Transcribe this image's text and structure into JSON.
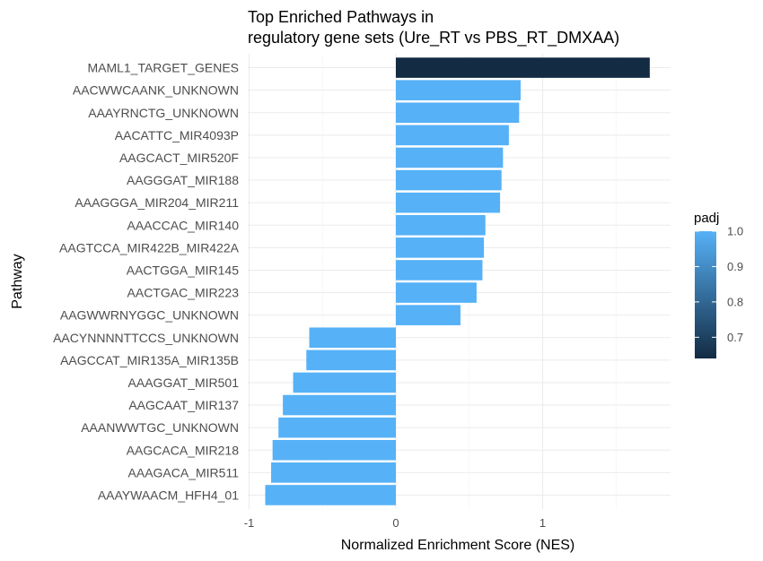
{
  "chart_data": {
    "type": "bar",
    "orientation": "horizontal",
    "title": [
      "Top Enriched Pathways in",
      "regulatory gene sets (Ure_RT vs PBS_RT_DMXAA)"
    ],
    "xlabel": "Normalized Enrichment Score (NES)",
    "ylabel": "Pathway",
    "xlim": [
      -1.0,
      1.85
    ],
    "xticks": [
      -1,
      0,
      1
    ],
    "xtick_labels": [
      "-1",
      "0",
      "1"
    ],
    "grid": true,
    "categories": [
      "MAML1_TARGET_GENES",
      "AACWWCAANK_UNKNOWN",
      "AAAYRNCTG_UNKNOWN",
      "AACATTC_MIR4093P",
      "AAGCACT_MIR520F",
      "AAGGGAT_MIR188",
      "AAAGGGA_MIR204_MIR211",
      "AAACCAC_MIR140",
      "AAGTCCA_MIR422B_MIR422A",
      "AACTGGA_MIR145",
      "AACTGAC_MIR223",
      "AAGWWRNYGGC_UNKNOWN",
      "AACYNNNNTTCCS_UNKNOWN",
      "AAGCCAT_MIR135A_MIR135B",
      "AAAGGAT_MIR501",
      "AAGCAAT_MIR137",
      "AAANWWTGC_UNKNOWN",
      "AAGCACA_MIR218",
      "AAAGACA_MIR511",
      "AAAYWAACM_HFH4_01"
    ],
    "values": [
      1.73,
      0.85,
      0.84,
      0.77,
      0.73,
      0.72,
      0.71,
      0.61,
      0.6,
      0.59,
      0.55,
      0.44,
      -0.59,
      -0.61,
      -0.7,
      -0.77,
      -0.8,
      -0.84,
      -0.85,
      -0.89
    ],
    "padj": [
      0.64,
      1.0,
      1.0,
      1.0,
      1.0,
      1.0,
      1.0,
      1.0,
      1.0,
      1.0,
      1.0,
      1.0,
      1.0,
      1.0,
      1.0,
      1.0,
      1.0,
      1.0,
      1.0,
      1.0
    ],
    "legend": {
      "title": "padj",
      "position": "right",
      "range": [
        0.64,
        1.0
      ],
      "ticks": [
        0.7,
        0.8,
        0.9,
        1.0
      ],
      "tick_labels": [
        "0.7",
        "0.8",
        "0.9",
        "1.0"
      ],
      "color_low": "#132b43",
      "color_high": "#56b1f7"
    }
  }
}
